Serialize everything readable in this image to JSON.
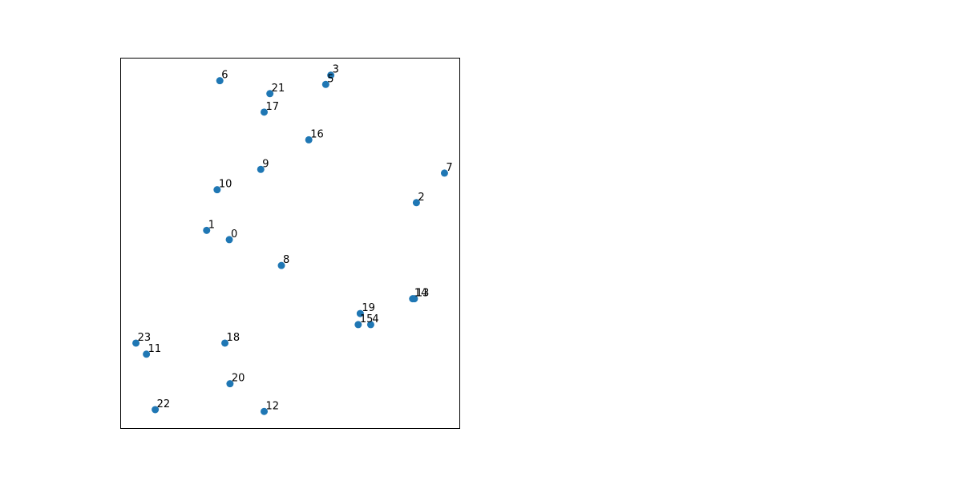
{
  "chart_data": {
    "type": "scatter",
    "title": "",
    "xlabel": "",
    "ylabel": "",
    "xlim": [
      0,
      1
    ],
    "ylim": [
      0,
      1
    ],
    "grid": false,
    "axes_ticks_visible": false,
    "marker_color": "#1f77b4",
    "label_color": "#000000",
    "points": [
      {
        "label": "0",
        "x": 0.32,
        "y": 0.51
      },
      {
        "label": "1",
        "x": 0.253,
        "y": 0.535
      },
      {
        "label": "2",
        "x": 0.873,
        "y": 0.61
      },
      {
        "label": "3",
        "x": 0.62,
        "y": 0.955
      },
      {
        "label": "4",
        "x": 0.738,
        "y": 0.28
      },
      {
        "label": "5",
        "x": 0.605,
        "y": 0.93
      },
      {
        "label": "6",
        "x": 0.292,
        "y": 0.94
      },
      {
        "label": "7",
        "x": 0.956,
        "y": 0.69
      },
      {
        "label": "8",
        "x": 0.474,
        "y": 0.44
      },
      {
        "label": "9",
        "x": 0.413,
        "y": 0.7
      },
      {
        "label": "10",
        "x": 0.284,
        "y": 0.645
      },
      {
        "label": "11",
        "x": 0.075,
        "y": 0.2
      },
      {
        "label": "12",
        "x": 0.423,
        "y": 0.045
      },
      {
        "label": "13",
        "x": 0.867,
        "y": 0.35
      },
      {
        "label": "14",
        "x": 0.862,
        "y": 0.35
      },
      {
        "label": "15",
        "x": 0.701,
        "y": 0.28
      },
      {
        "label": "16",
        "x": 0.555,
        "y": 0.78
      },
      {
        "label": "17",
        "x": 0.423,
        "y": 0.855
      },
      {
        "label": "18",
        "x": 0.307,
        "y": 0.23
      },
      {
        "label": "19",
        "x": 0.707,
        "y": 0.31
      },
      {
        "label": "20",
        "x": 0.322,
        "y": 0.12
      },
      {
        "label": "21",
        "x": 0.44,
        "y": 0.905
      },
      {
        "label": "22",
        "x": 0.101,
        "y": 0.05
      },
      {
        "label": "23",
        "x": 0.044,
        "y": 0.23
      }
    ]
  }
}
